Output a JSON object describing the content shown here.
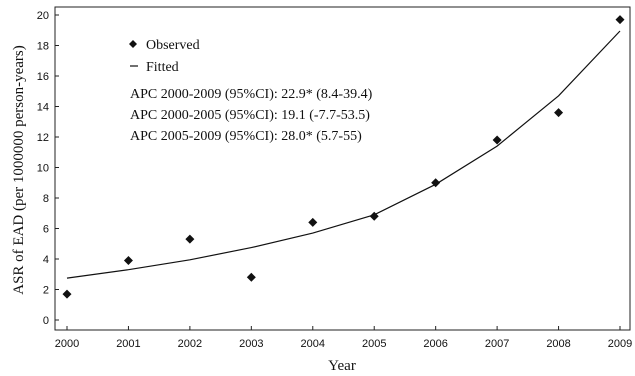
{
  "chart_data": {
    "type": "scatter",
    "xlabel": "Year",
    "ylabel": "ASR of EAD (per 1000000 person-years)",
    "xlim": [
      2000,
      2009
    ],
    "ylim": [
      0,
      20
    ],
    "x_ticks": [
      "2000",
      "2001",
      "2002",
      "2003",
      "2004",
      "2005",
      "2006",
      "2007",
      "2008",
      "2009"
    ],
    "y_ticks": [
      "0",
      "2",
      "4",
      "6",
      "8",
      "10",
      "12",
      "14",
      "16",
      "18",
      "20"
    ],
    "grid": false,
    "legend": {
      "position": "top-left",
      "entries": [
        {
          "name": "Observed",
          "marker": "diamond"
        },
        {
          "name": "Fitted",
          "marker": "line"
        }
      ]
    },
    "annotations": [
      "APC 2000-2009 (95%CI): 22.9* (8.4-39.4)",
      "APC 2000-2005 (95%CI): 19.1 (-7.7-53.5)",
      "APC 2005-2009 (95%CI): 28.0* (5.7-55)"
    ],
    "series": [
      {
        "name": "Observed",
        "style": "markers",
        "x": [
          2000,
          2001,
          2002,
          2003,
          2004,
          2005,
          2006,
          2007,
          2008,
          2009
        ],
        "y": [
          1.7,
          3.9,
          5.3,
          2.8,
          6.4,
          6.8,
          9.0,
          11.8,
          13.6,
          19.7
        ]
      },
      {
        "name": "Fitted",
        "style": "line",
        "x": [
          2000,
          2001,
          2002,
          2003,
          2004,
          2005,
          2006,
          2007,
          2008,
          2009
        ],
        "y": [
          2.75,
          3.3,
          3.95,
          4.75,
          5.7,
          6.9,
          8.9,
          11.4,
          14.7,
          18.95
        ]
      }
    ]
  }
}
